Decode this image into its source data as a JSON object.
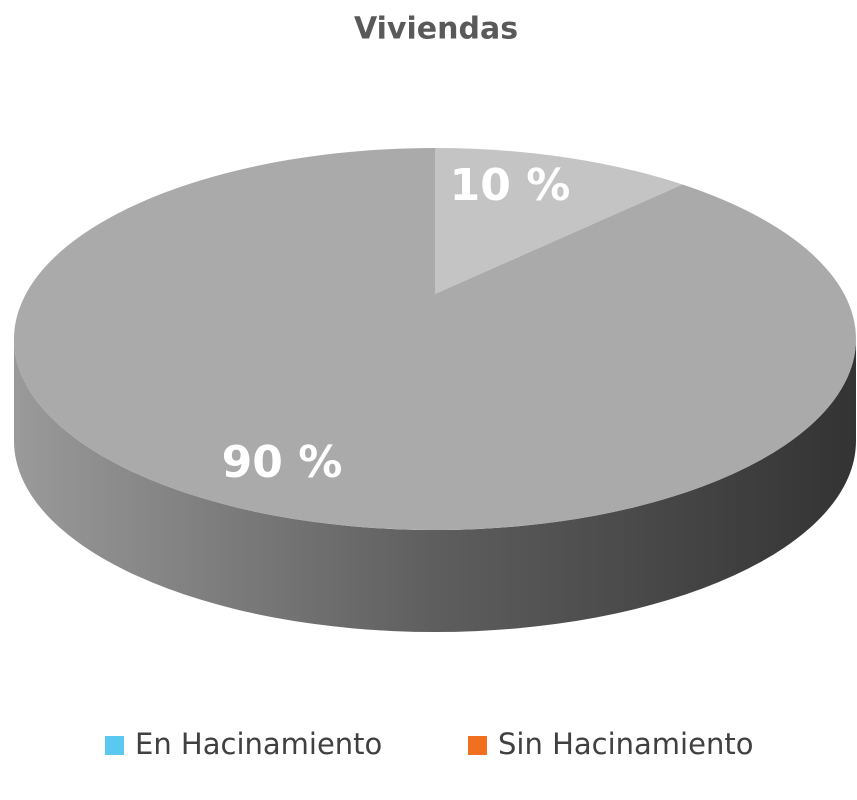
{
  "chart_data": {
    "type": "pie",
    "title": "Viviendas",
    "categories": [
      "En Hacinamiento",
      "Sin Hacinamiento"
    ],
    "values": [
      10,
      90
    ],
    "value_labels": [
      "10 %",
      "90 %"
    ],
    "colors": [
      "#5bc8f0",
      "#f07020"
    ]
  }
}
